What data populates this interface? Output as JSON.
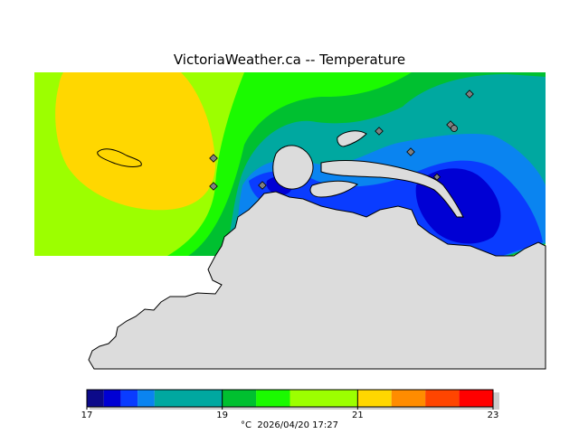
{
  "title": "VictoriaWeather.ca -- Temperature",
  "legend": {
    "unit": "°C",
    "timestamp": "2026/04/20 17:27",
    "ticks": [
      "17",
      "19",
      "21",
      "23"
    ],
    "bins": [
      {
        "from": 17.0,
        "to": 17.25,
        "color": "#0c0a8a"
      },
      {
        "from": 17.25,
        "to": 17.5,
        "color": "#0000d4"
      },
      {
        "from": 17.5,
        "to": 17.75,
        "color": "#0a3cff"
      },
      {
        "from": 17.75,
        "to": 18.0,
        "color": "#0a84f0"
      },
      {
        "from": 18.0,
        "to": 19.0,
        "color": "#00a8a0"
      },
      {
        "from": 19.0,
        "to": 19.5,
        "color": "#00c030"
      },
      {
        "from": 19.5,
        "to": 20.0,
        "color": "#1bfa00"
      },
      {
        "from": 20.0,
        "to": 21.0,
        "color": "#9cff00"
      },
      {
        "from": 21.0,
        "to": 21.5,
        "color": "#ffd700"
      },
      {
        "from": 21.5,
        "to": 22.0,
        "color": "#ff8c00"
      },
      {
        "from": 22.0,
        "to": 22.5,
        "color": "#ff4500"
      },
      {
        "from": 22.5,
        "to": 23.0,
        "color": "#ff0000"
      }
    ]
  },
  "colors": {
    "land": "#dcdcdc",
    "station_marker": "#808080"
  }
}
